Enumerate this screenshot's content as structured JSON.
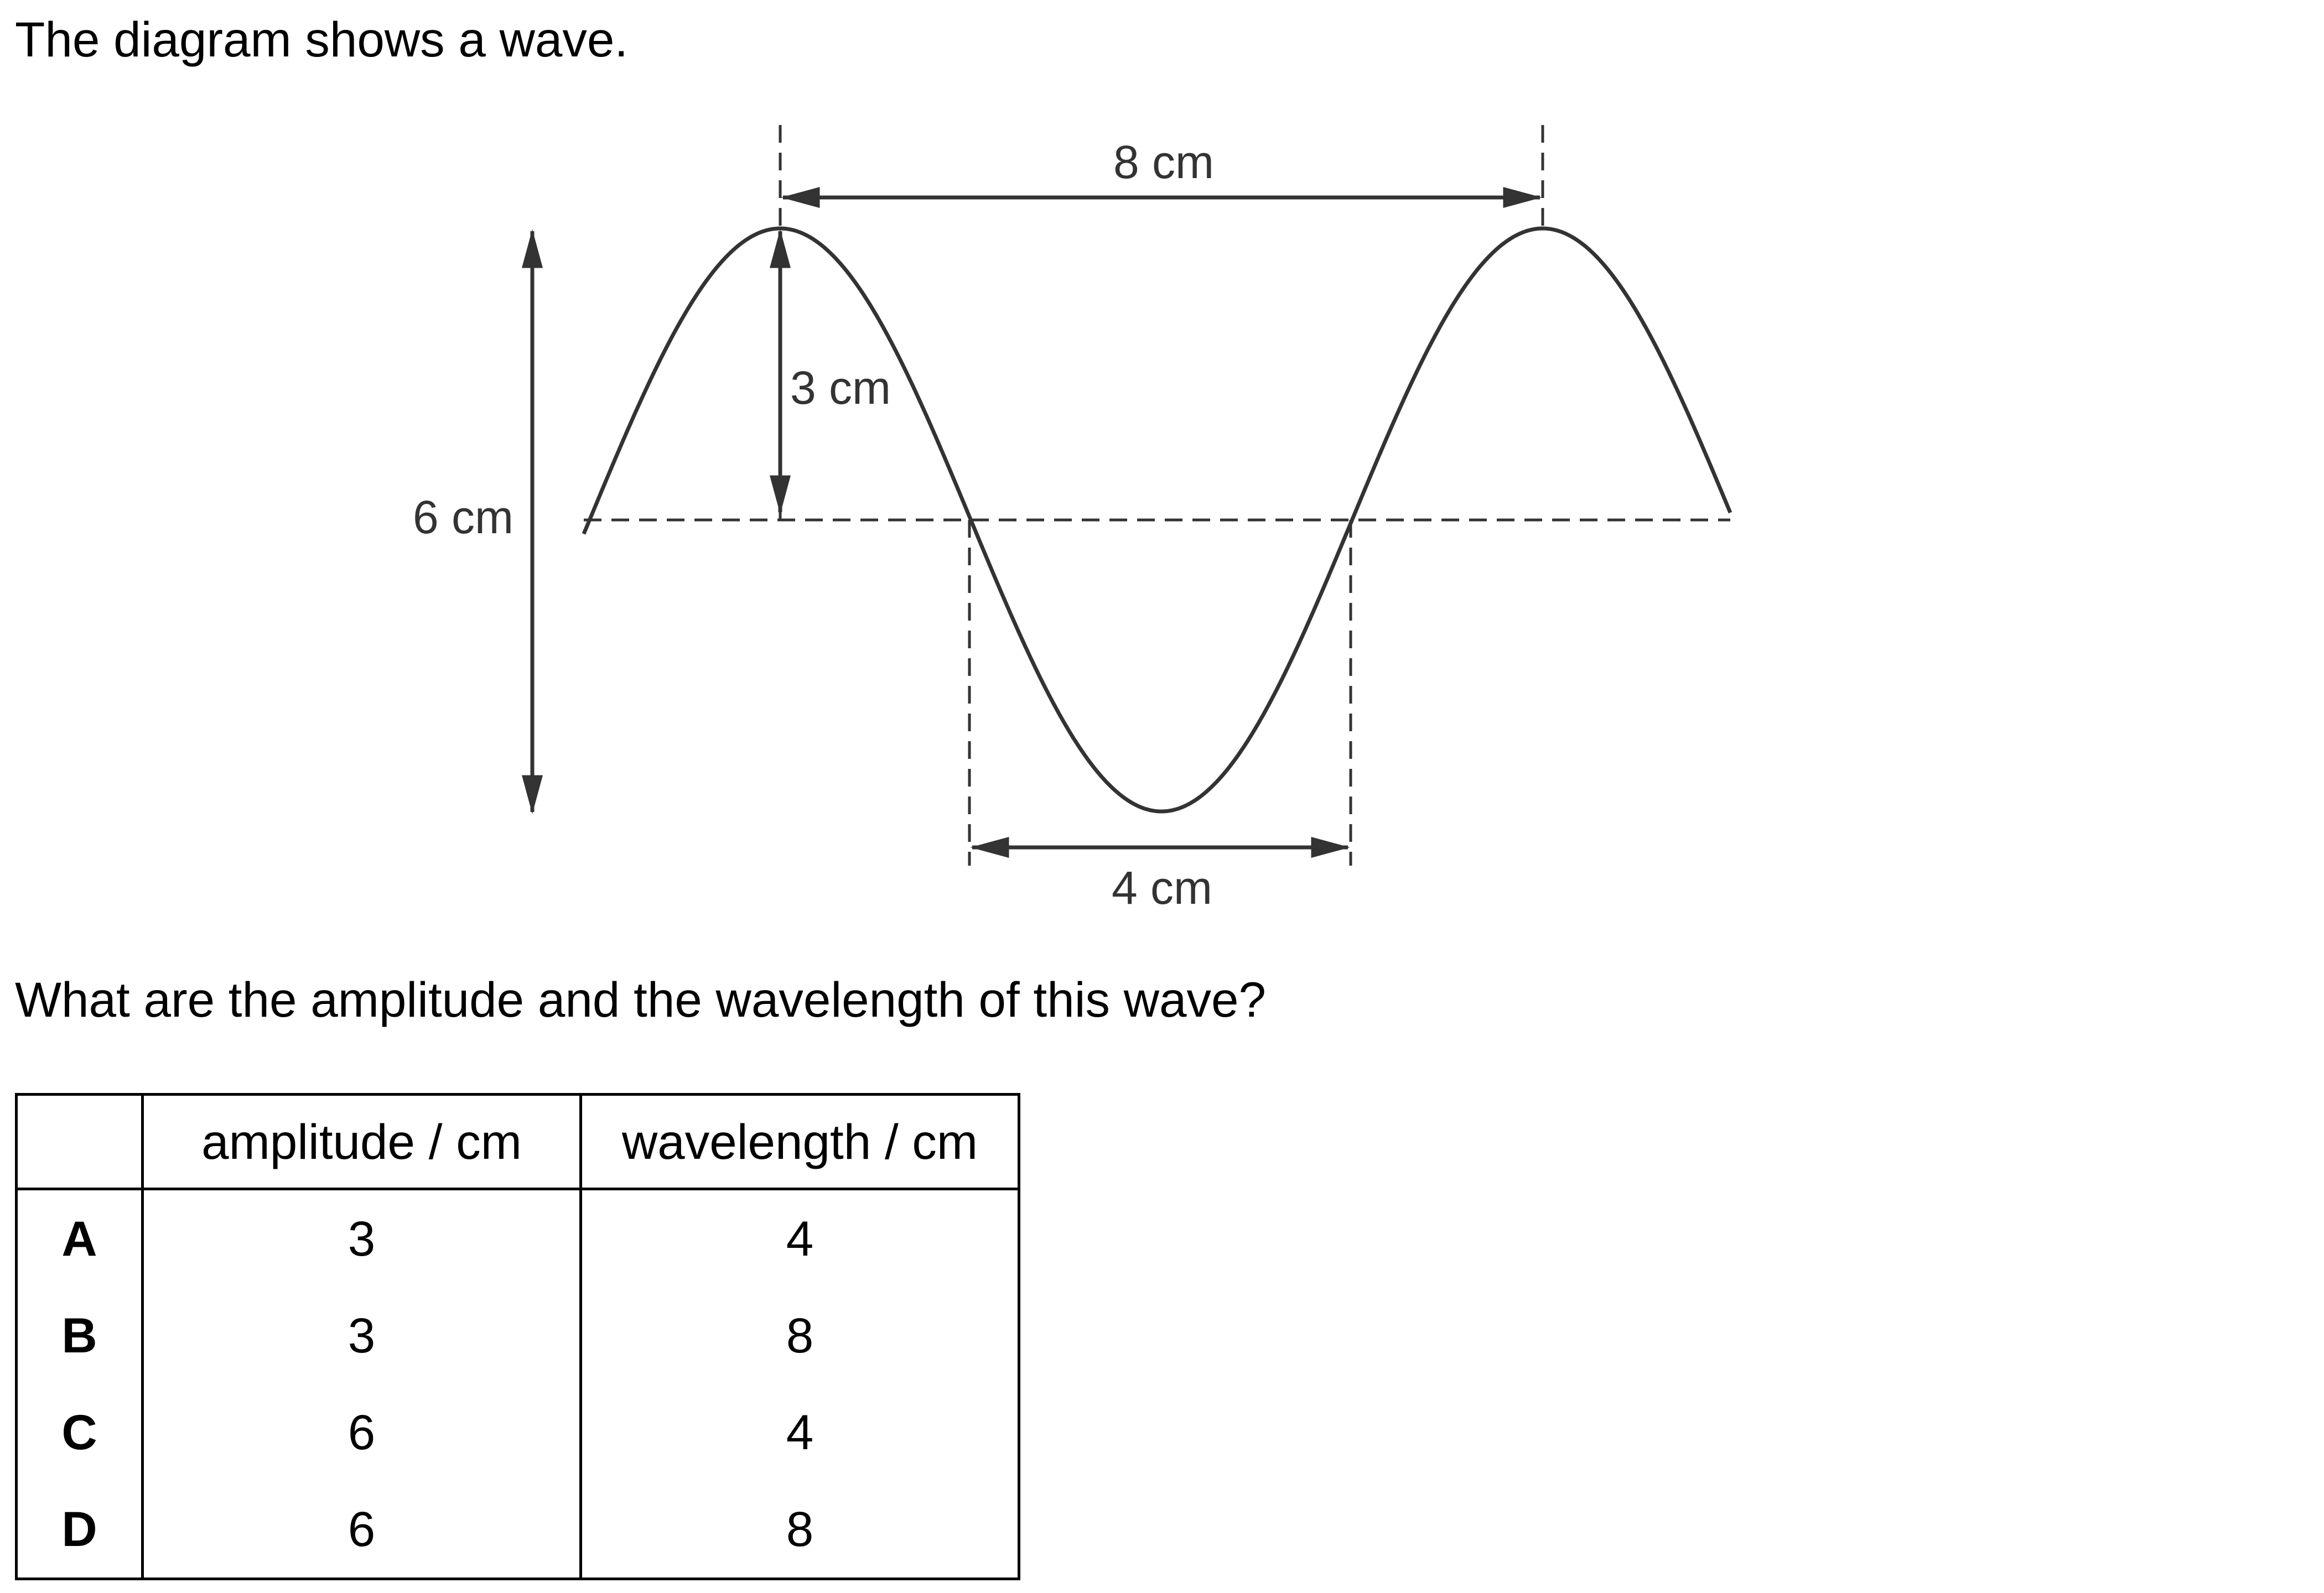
{
  "intro_text": "The diagram shows a wave.",
  "question_text": "What are the amplitude and the wavelength of this wave?",
  "diagram": {
    "label_top": "8 cm",
    "label_amplitude": "3 cm",
    "label_height": "6 cm",
    "label_bottom": "4 cm"
  },
  "table": {
    "headers": [
      "",
      "amplitude / cm",
      "wavelength / cm"
    ],
    "rows": [
      {
        "option": "A",
        "amplitude": "3",
        "wavelength": "4"
      },
      {
        "option": "B",
        "amplitude": "3",
        "wavelength": "8"
      },
      {
        "option": "C",
        "amplitude": "6",
        "wavelength": "4"
      },
      {
        "option": "D",
        "amplitude": "6",
        "wavelength": "8"
      }
    ]
  }
}
